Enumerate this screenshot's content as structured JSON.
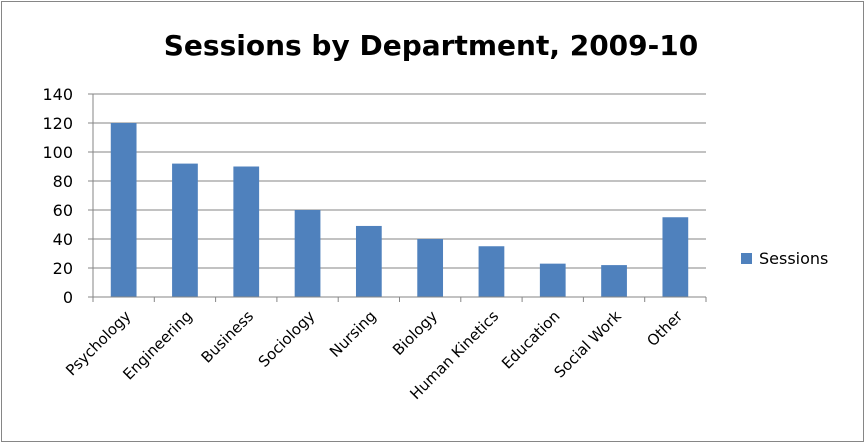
{
  "chart_data": {
    "type": "bar",
    "title": "Sessions by Department, 2009-10",
    "xlabel": "",
    "ylabel": "",
    "categories": [
      "Psychology",
      "Engineering",
      "Business",
      "Sociology",
      "Nursing",
      "Biology",
      "Human Kinetics",
      "Education",
      "Social Work",
      "Other"
    ],
    "series": [
      {
        "name": "Sessions",
        "color": "#4F81BD",
        "values": [
          120,
          92,
          90,
          60,
          49,
          40,
          35,
          23,
          22,
          55
        ]
      }
    ],
    "ylim": [
      0,
      140
    ],
    "yticks": [
      0,
      20,
      40,
      60,
      80,
      100,
      120,
      140
    ],
    "grid": true,
    "legend": "right"
  }
}
